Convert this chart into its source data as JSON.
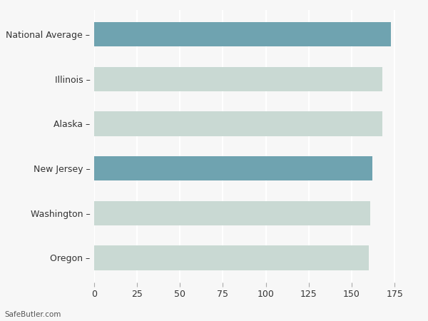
{
  "categories": [
    "Oregon",
    "Washington",
    "New Jersey",
    "Alaska",
    "Illinois",
    "National Average"
  ],
  "values": [
    160,
    161,
    162,
    168,
    168,
    173
  ],
  "colors": [
    "#c9d9d3",
    "#c9d9d3",
    "#6fa3b0",
    "#c9d9d3",
    "#c9d9d3",
    "#6fa3b0"
  ],
  "xlim": [
    0,
    187
  ],
  "xticks": [
    0,
    25,
    50,
    75,
    100,
    125,
    150,
    175
  ],
  "background_color": "#f7f7f7",
  "grid_color": "#ffffff",
  "text_color": "#333333",
  "footnote": "SafeButler.com",
  "bar_height": 0.55,
  "figsize": [
    6.0,
    4.5
  ],
  "dpi": 100
}
